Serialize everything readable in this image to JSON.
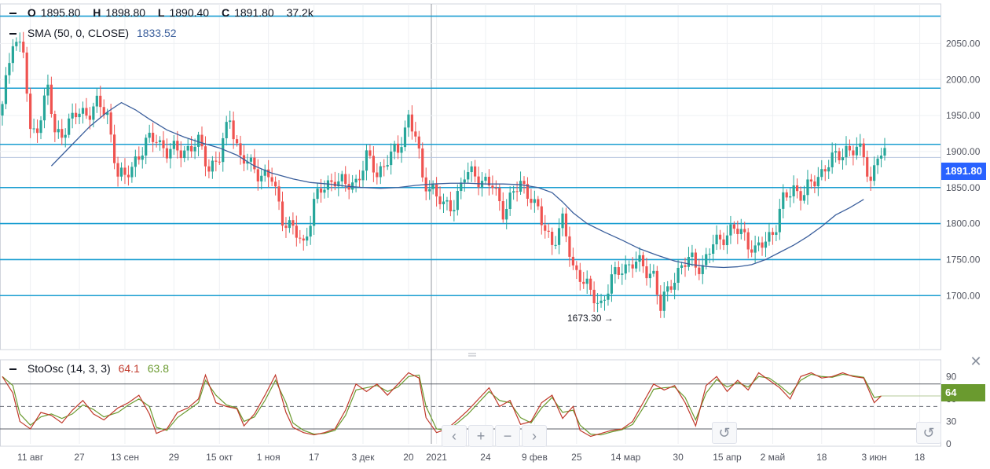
{
  "ohlc": {
    "o_label": "O",
    "o": "1895.80",
    "h_label": "H",
    "h": "1898.80",
    "l_label": "L",
    "l": "1890.40",
    "c_label": "C",
    "c": "1891.80",
    "vol": "37.2k"
  },
  "sma": {
    "label": "SMA (50, 0, CLOSE)",
    "value": "1833.52",
    "color": "#3b5f9c"
  },
  "stoch": {
    "label": "StoOsc (14, 3, 3)",
    "k": "64.1",
    "d": "63.8",
    "k_color": "#c0392b",
    "d_color": "#6a9a2f"
  },
  "price_badge": {
    "value": "1891.80",
    "color": "#2962ff"
  },
  "stoch_badge": {
    "value": "64",
    "color": "#6a9a2f"
  },
  "low_marker": {
    "text": "1673.30 →",
    "value": 1673.3
  },
  "colors": {
    "up": "#26a69a",
    "down": "#ef5350",
    "level_line": "#1a9ed1",
    "grid": "#eef0f3"
  },
  "nav": {
    "back": "‹",
    "zoom_in": "+",
    "zoom_out": "−",
    "forward": "›",
    "reset": "↺"
  },
  "chart_data": {
    "type": "candlestick",
    "y_ticks": [
      "2050.00",
      "2000.00",
      "1950.00",
      "1900.00",
      "1850.00",
      "1800.00",
      "1750.00",
      "1700.00"
    ],
    "ylim": [
      1625,
      2105
    ],
    "horizontal_levels": [
      2088,
      1988,
      1910,
      1850,
      1800,
      1750,
      1700
    ],
    "current_price": 1891.8,
    "x_labels": [
      "11 авг",
      "27",
      "13 сен",
      "29",
      "15 окт",
      "1 ноя",
      "17",
      "3 дек",
      "20",
      "2021",
      "24",
      "9 фев",
      "25",
      "14 мар",
      "30",
      "15 апр",
      "2 май",
      "18",
      "3 июн",
      "18"
    ],
    "close_path": [
      [
        0,
        1960
      ],
      [
        3,
        2060
      ],
      [
        6,
        2040
      ],
      [
        8,
        1920
      ],
      [
        11,
        1950
      ],
      [
        13,
        1990
      ],
      [
        15,
        1920
      ],
      [
        18,
        1935
      ],
      [
        21,
        1950
      ],
      [
        24,
        1955
      ],
      [
        27,
        1965
      ],
      [
        30,
        1950
      ],
      [
        33,
        1870
      ],
      [
        35,
        1860
      ],
      [
        38,
        1890
      ],
      [
        41,
        1910
      ],
      [
        44,
        1920
      ],
      [
        47,
        1900
      ],
      [
        50,
        1900
      ],
      [
        53,
        1905
      ],
      [
        56,
        1910
      ],
      [
        59,
        1880
      ],
      [
        62,
        1890
      ],
      [
        65,
        1950
      ],
      [
        68,
        1890
      ],
      [
        71,
        1880
      ],
      [
        74,
        1870
      ],
      [
        77,
        1860
      ],
      [
        80,
        1810
      ],
      [
        83,
        1790
      ],
      [
        86,
        1770
      ],
      [
        89,
        1830
      ],
      [
        92,
        1850
      ],
      [
        95,
        1865
      ],
      [
        98,
        1850
      ],
      [
        101,
        1860
      ],
      [
        104,
        1890
      ],
      [
        107,
        1870
      ],
      [
        110,
        1890
      ],
      [
        113,
        1900
      ],
      [
        116,
        1950
      ],
      [
        118,
        1920
      ],
      [
        120,
        1860
      ],
      [
        123,
        1850
      ],
      [
        126,
        1820
      ],
      [
        129,
        1830
      ],
      [
        132,
        1865
      ],
      [
        135,
        1870
      ],
      [
        137,
        1860
      ],
      [
        140,
        1850
      ],
      [
        143,
        1820
      ],
      [
        146,
        1840
      ],
      [
        148,
        1855
      ],
      [
        151,
        1840
      ],
      [
        154,
        1800
      ],
      [
        157,
        1775
      ],
      [
        160,
        1800
      ],
      [
        163,
        1740
      ],
      [
        165,
        1730
      ],
      [
        168,
        1700
      ],
      [
        171,
        1690
      ],
      [
        174,
        1720
      ],
      [
        177,
        1740
      ],
      [
        180,
        1745
      ],
      [
        183,
        1740
      ],
      [
        186,
        1730
      ],
      [
        188,
        1680
      ],
      [
        191,
        1720
      ],
      [
        194,
        1740
      ],
      [
        197,
        1750
      ],
      [
        200,
        1740
      ],
      [
        203,
        1770
      ],
      [
        206,
        1785
      ],
      [
        209,
        1790
      ],
      [
        212,
        1785
      ],
      [
        215,
        1760
      ],
      [
        218,
        1775
      ],
      [
        221,
        1800
      ],
      [
        223,
        1830
      ],
      [
        226,
        1850
      ],
      [
        229,
        1840
      ],
      [
        232,
        1860
      ],
      [
        235,
        1880
      ],
      [
        238,
        1890
      ],
      [
        241,
        1905
      ],
      [
        244,
        1900
      ],
      [
        246,
        1895
      ],
      [
        248,
        1860
      ],
      [
        250,
        1895
      ],
      [
        252,
        1891.8
      ]
    ],
    "sma_path": [
      [
        14,
        1880
      ],
      [
        20,
        1910
      ],
      [
        25,
        1935
      ],
      [
        30,
        1955
      ],
      [
        34,
        1968
      ],
      [
        38,
        1958
      ],
      [
        42,
        1945
      ],
      [
        47,
        1930
      ],
      [
        52,
        1920
      ],
      [
        57,
        1912
      ],
      [
        62,
        1905
      ],
      [
        67,
        1895
      ],
      [
        72,
        1880
      ],
      [
        77,
        1870
      ],
      [
        83,
        1862
      ],
      [
        88,
        1857
      ],
      [
        93,
        1855
      ],
      [
        98,
        1852
      ],
      [
        103,
        1850
      ],
      [
        108,
        1849
      ],
      [
        113,
        1850
      ],
      [
        118,
        1853
      ],
      [
        123,
        1855
      ],
      [
        128,
        1856
      ],
      [
        133,
        1856
      ],
      [
        138,
        1855
      ],
      [
        143,
        1855
      ],
      [
        148,
        1854
      ],
      [
        153,
        1850
      ],
      [
        157,
        1843
      ],
      [
        160,
        1830
      ],
      [
        163,
        1815
      ],
      [
        167,
        1800
      ],
      [
        172,
        1788
      ],
      [
        177,
        1777
      ],
      [
        182,
        1765
      ],
      [
        187,
        1756
      ],
      [
        192,
        1748
      ],
      [
        197,
        1743
      ],
      [
        202,
        1740
      ],
      [
        206,
        1739
      ],
      [
        210,
        1740
      ],
      [
        214,
        1743
      ],
      [
        218,
        1750
      ],
      [
        222,
        1760
      ],
      [
        226,
        1770
      ],
      [
        230,
        1782
      ],
      [
        234,
        1796
      ],
      [
        238,
        1812
      ],
      [
        242,
        1822
      ],
      [
        246,
        1833.52
      ]
    ],
    "stoch_k_path": [
      [
        0,
        90
      ],
      [
        3,
        68
      ],
      [
        5,
        30
      ],
      [
        8,
        20
      ],
      [
        11,
        42
      ],
      [
        14,
        38
      ],
      [
        17,
        28
      ],
      [
        20,
        45
      ],
      [
        23,
        58
      ],
      [
        26,
        40
      ],
      [
        29,
        32
      ],
      [
        33,
        48
      ],
      [
        36,
        55
      ],
      [
        39,
        65
      ],
      [
        42,
        40
      ],
      [
        44,
        14
      ],
      [
        47,
        20
      ],
      [
        50,
        42
      ],
      [
        53,
        48
      ],
      [
        56,
        60
      ],
      [
        58,
        92
      ],
      [
        61,
        55
      ],
      [
        64,
        50
      ],
      [
        67,
        47
      ],
      [
        69,
        24
      ],
      [
        72,
        40
      ],
      [
        75,
        65
      ],
      [
        78,
        92
      ],
      [
        81,
        42
      ],
      [
        83,
        22
      ],
      [
        86,
        15
      ],
      [
        89,
        12
      ],
      [
        92,
        15
      ],
      [
        95,
        20
      ],
      [
        98,
        45
      ],
      [
        101,
        80
      ],
      [
        104,
        70
      ],
      [
        107,
        80
      ],
      [
        110,
        65
      ],
      [
        113,
        80
      ],
      [
        116,
        95
      ],
      [
        119,
        88
      ],
      [
        121,
        35
      ],
      [
        124,
        15
      ],
      [
        127,
        20
      ],
      [
        130,
        32
      ],
      [
        133,
        45
      ],
      [
        136,
        60
      ],
      [
        139,
        75
      ],
      [
        142,
        50
      ],
      [
        145,
        58
      ],
      [
        148,
        26
      ],
      [
        151,
        30
      ],
      [
        154,
        55
      ],
      [
        157,
        65
      ],
      [
        160,
        34
      ],
      [
        163,
        50
      ],
      [
        165,
        18
      ],
      [
        168,
        10
      ],
      [
        171,
        14
      ],
      [
        174,
        18
      ],
      [
        177,
        20
      ],
      [
        180,
        30
      ],
      [
        183,
        55
      ],
      [
        186,
        80
      ],
      [
        189,
        72
      ],
      [
        192,
        78
      ],
      [
        195,
        55
      ],
      [
        198,
        24
      ],
      [
        201,
        78
      ],
      [
        204,
        90
      ],
      [
        207,
        70
      ],
      [
        210,
        85
      ],
      [
        213,
        72
      ],
      [
        216,
        95
      ],
      [
        219,
        85
      ],
      [
        222,
        75
      ],
      [
        225,
        60
      ],
      [
        228,
        90
      ],
      [
        231,
        95
      ],
      [
        234,
        88
      ],
      [
        237,
        90
      ],
      [
        240,
        95
      ],
      [
        243,
        90
      ],
      [
        246,
        88
      ],
      [
        249,
        55
      ],
      [
        251,
        64.1
      ]
    ],
    "stoch_d_path": [
      [
        0,
        90
      ],
      [
        3,
        78
      ],
      [
        5,
        40
      ],
      [
        8,
        25
      ],
      [
        11,
        36
      ],
      [
        14,
        40
      ],
      [
        17,
        34
      ],
      [
        20,
        40
      ],
      [
        23,
        52
      ],
      [
        26,
        46
      ],
      [
        29,
        36
      ],
      [
        33,
        42
      ],
      [
        36,
        52
      ],
      [
        39,
        60
      ],
      [
        42,
        50
      ],
      [
        44,
        22
      ],
      [
        47,
        18
      ],
      [
        50,
        35
      ],
      [
        53,
        45
      ],
      [
        56,
        55
      ],
      [
        58,
        85
      ],
      [
        61,
        65
      ],
      [
        64,
        52
      ],
      [
        67,
        48
      ],
      [
        69,
        30
      ],
      [
        72,
        36
      ],
      [
        75,
        58
      ],
      [
        78,
        85
      ],
      [
        81,
        55
      ],
      [
        83,
        28
      ],
      [
        86,
        18
      ],
      [
        89,
        13
      ],
      [
        92,
        14
      ],
      [
        95,
        18
      ],
      [
        98,
        38
      ],
      [
        101,
        72
      ],
      [
        104,
        75
      ],
      [
        107,
        78
      ],
      [
        110,
        70
      ],
      [
        113,
        76
      ],
      [
        116,
        90
      ],
      [
        119,
        92
      ],
      [
        121,
        50
      ],
      [
        124,
        20
      ],
      [
        127,
        18
      ],
      [
        130,
        28
      ],
      [
        133,
        40
      ],
      [
        136,
        55
      ],
      [
        139,
        70
      ],
      [
        142,
        58
      ],
      [
        145,
        55
      ],
      [
        148,
        35
      ],
      [
        151,
        28
      ],
      [
        154,
        48
      ],
      [
        157,
        62
      ],
      [
        160,
        42
      ],
      [
        163,
        45
      ],
      [
        165,
        25
      ],
      [
        168,
        13
      ],
      [
        171,
        12
      ],
      [
        174,
        16
      ],
      [
        177,
        19
      ],
      [
        180,
        26
      ],
      [
        183,
        48
      ],
      [
        186,
        73
      ],
      [
        189,
        75
      ],
      [
        192,
        76
      ],
      [
        195,
        62
      ],
      [
        198,
        32
      ],
      [
        201,
        68
      ],
      [
        204,
        86
      ],
      [
        207,
        76
      ],
      [
        210,
        82
      ],
      [
        213,
        76
      ],
      [
        216,
        90
      ],
      [
        219,
        88
      ],
      [
        222,
        78
      ],
      [
        225,
        66
      ],
      [
        228,
        85
      ],
      [
        231,
        93
      ],
      [
        234,
        90
      ],
      [
        237,
        89
      ],
      [
        240,
        93
      ],
      [
        243,
        91
      ],
      [
        246,
        89
      ],
      [
        249,
        62
      ],
      [
        251,
        63.8
      ]
    ],
    "stoch_levels": [
      80,
      50,
      20
    ],
    "stoch_ticks": [
      "90",
      "60",
      "30",
      "0"
    ],
    "grid": true
  }
}
